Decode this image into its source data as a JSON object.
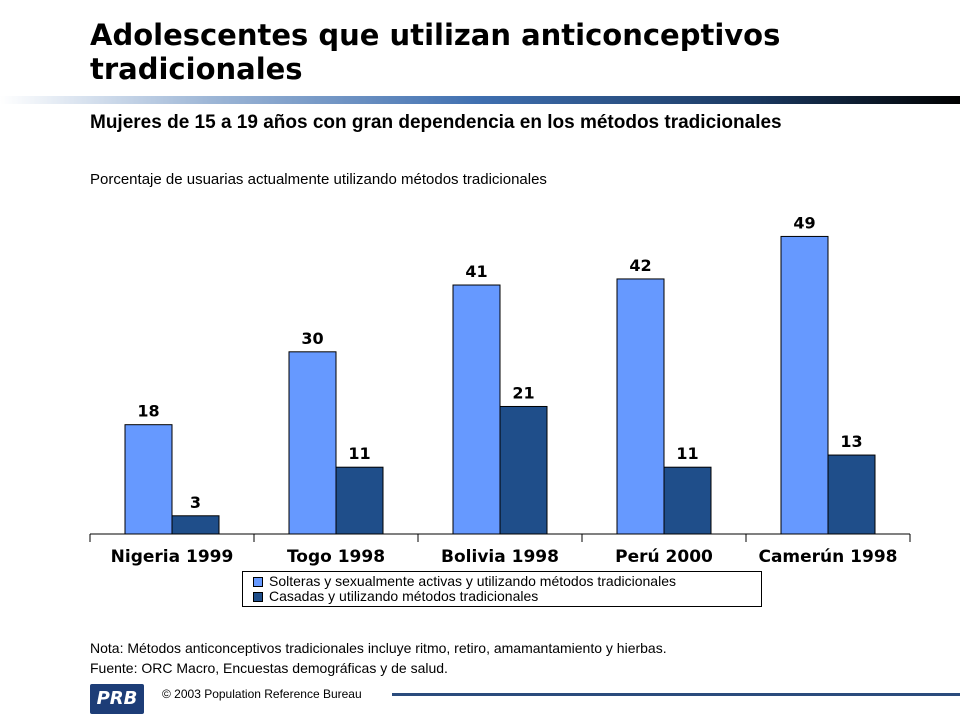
{
  "title": "Adolescentes que utilizan anticonceptivos tradicionales",
  "subtitle": "Mujeres de 15 a 19 años con gran dependencia en los métodos tradicionales",
  "chart_data": {
    "type": "bar",
    "ylabel": "Porcentaje de usuarias actualmente utilizando métodos tradicionales",
    "categories": [
      "Nigeria 1999",
      "Togo 1998",
      "Bolivia 1998",
      "Perú 2000",
      "Camerún 1998"
    ],
    "series": [
      {
        "name": "Solteras y sexualmente activas y utilizando métodos tradicionales",
        "color": "#6699ff",
        "values": [
          18,
          30,
          41,
          42,
          49
        ]
      },
      {
        "name": "Casadas y utilizando métodos tradicionales",
        "color": "#1f4e8a",
        "values": [
          3,
          11,
          21,
          11,
          13
        ]
      }
    ],
    "ylim": [
      0,
      55
    ],
    "grid": false,
    "legend_position": "bottom"
  },
  "note": "Nota: Métodos anticonceptivos tradicionales incluye ritmo, retiro, amamantamiento y hierbas.",
  "source": "Fuente: ORC Macro, Encuestas demográficas y de salud.",
  "footer": {
    "logo_text": "PRB",
    "copyright": "© 2003 Population Reference Bureau"
  }
}
